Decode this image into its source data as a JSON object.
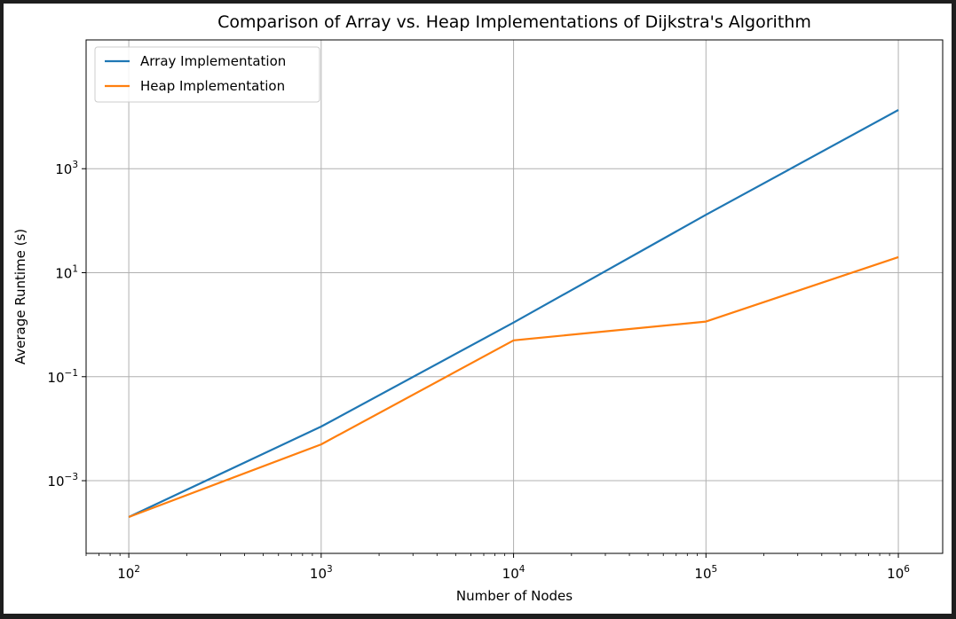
{
  "chart_data": {
    "type": "line",
    "title": "Comparison of Array vs. Heap Implementations of Dijkstra's Algorithm",
    "xlabel": "Number of Nodes",
    "ylabel": "Average Runtime (s)",
    "xscale": "log",
    "yscale": "log",
    "xlim": [
      60,
      1700000
    ],
    "ylim": [
      4e-05,
      300000
    ],
    "x": [
      100,
      1000,
      10000,
      100000,
      1000000
    ],
    "xticks": [
      {
        "value": 100,
        "base": "10",
        "exp": "2"
      },
      {
        "value": 1000,
        "base": "10",
        "exp": "3"
      },
      {
        "value": 10000,
        "base": "10",
        "exp": "4"
      },
      {
        "value": 100000,
        "base": "10",
        "exp": "5"
      },
      {
        "value": 1000000,
        "base": "10",
        "exp": "6"
      }
    ],
    "yticks": [
      {
        "value": 0.001,
        "base": "10",
        "exp": "−3"
      },
      {
        "value": 0.1,
        "base": "10",
        "exp": "−1"
      },
      {
        "value": 10,
        "base": "10",
        "exp": "1"
      },
      {
        "value": 1000,
        "base": "10",
        "exp": "3"
      }
    ],
    "series": [
      {
        "name": "Array Implementation",
        "color": "#1f77b4",
        "values": [
          0.0002,
          0.011,
          1.1,
          130,
          13500
        ]
      },
      {
        "name": "Heap Implementation",
        "color": "#ff7f0e",
        "values": [
          0.0002,
          0.005,
          0.5,
          1.15,
          20
        ]
      }
    ],
    "grid": true,
    "legend_position": "top-left"
  }
}
